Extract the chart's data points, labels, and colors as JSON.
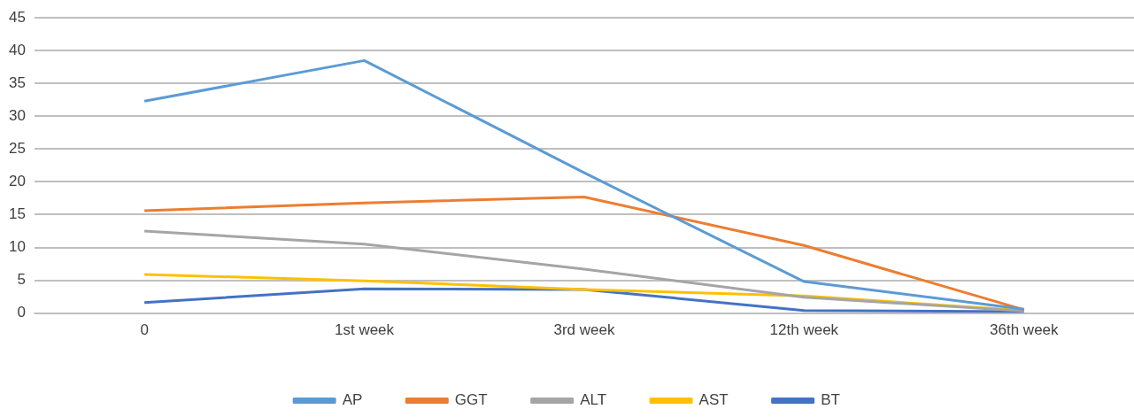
{
  "chart_data": {
    "type": "line",
    "categories": [
      "0",
      "1st week",
      "3rd week",
      "12th week",
      "36th week"
    ],
    "series": [
      {
        "name": "AP",
        "color": "#5b9bd5",
        "values": [
          32.3,
          38.5,
          21.4,
          4.8,
          0.6
        ]
      },
      {
        "name": "GGT",
        "color": "#ed7d31",
        "values": [
          15.6,
          16.8,
          17.7,
          10.3,
          0.5
        ]
      },
      {
        "name": "ALT",
        "color": "#a5a5a5",
        "values": [
          12.5,
          10.5,
          6.7,
          2.4,
          0.3
        ]
      },
      {
        "name": "AST",
        "color": "#ffc000",
        "values": [
          5.9,
          4.9,
          3.6,
          2.6,
          0.4
        ]
      },
      {
        "name": "BT",
        "color": "#4472c4",
        "values": [
          1.6,
          3.7,
          3.6,
          0.4,
          0.2
        ]
      }
    ],
    "ylim": [
      0,
      45
    ],
    "yticks": [
      0,
      5,
      10,
      15,
      20,
      25,
      30,
      35,
      40,
      45
    ],
    "grid": "y",
    "legend": "bottom",
    "marker": "none",
    "line_style": "solid"
  }
}
